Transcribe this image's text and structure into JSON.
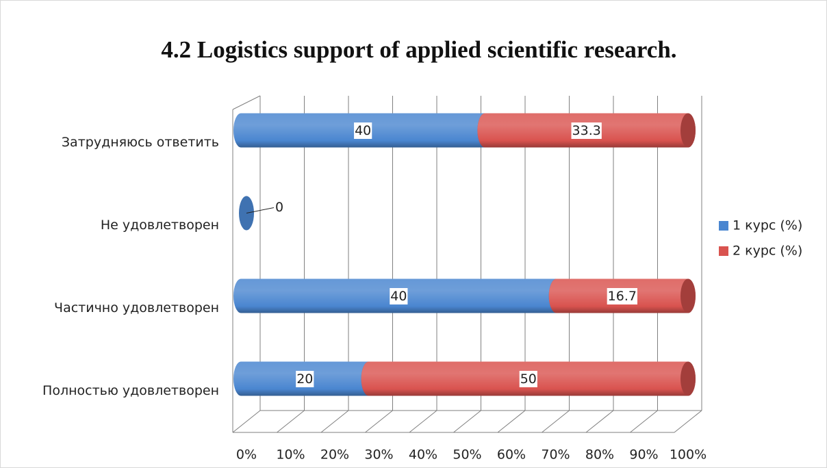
{
  "chart_data": {
    "type": "bar",
    "orientation": "horizontal",
    "stacked": "percent",
    "title": "4.2 Logistics support of applied scientific research.",
    "categories": [
      "Полностью удовлетворен",
      "Частично удовлетворен",
      "Не удовлетворен",
      "Затрудняюсь ответить"
    ],
    "series": [
      {
        "name": "1 курс (%)",
        "color": "#4a86d0",
        "values": [
          20,
          40,
          0,
          40
        ]
      },
      {
        "name": "2 курс (%)",
        "color": "#d9534f",
        "values": [
          50,
          16.7,
          null,
          33.3
        ]
      }
    ],
    "xlim": [
      0,
      100
    ],
    "xticks": [
      {
        "value": 0,
        "label": "0%"
      },
      {
        "value": 10,
        "label": "10%"
      },
      {
        "value": 20,
        "label": "20%"
      },
      {
        "value": 30,
        "label": "30%"
      },
      {
        "value": 40,
        "label": "40%"
      },
      {
        "value": 50,
        "label": "50%"
      },
      {
        "value": 60,
        "label": "60%"
      },
      {
        "value": 70,
        "label": "70%"
      },
      {
        "value": 80,
        "label": "80%"
      },
      {
        "value": 90,
        "label": "90%"
      },
      {
        "value": 100,
        "label": "100%"
      }
    ],
    "grid": true,
    "legend": "right"
  }
}
